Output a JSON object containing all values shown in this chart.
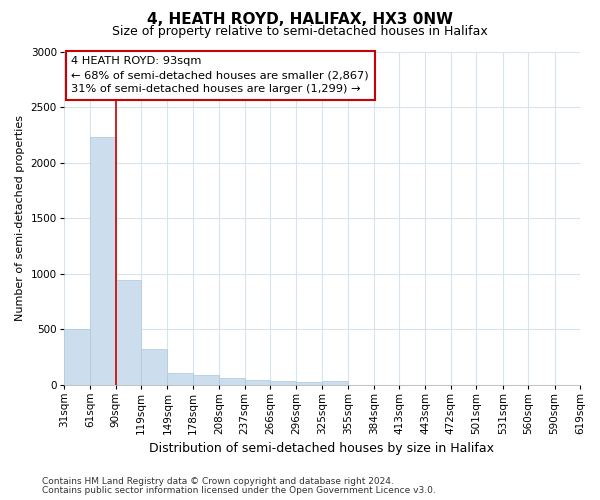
{
  "title": "4, HEATH ROYD, HALIFAX, HX3 0NW",
  "subtitle": "Size of property relative to semi-detached houses in Halifax",
  "xlabel": "Distribution of semi-detached houses by size in Halifax",
  "ylabel": "Number of semi-detached properties",
  "footnote1": "Contains HM Land Registry data © Crown copyright and database right 2024.",
  "footnote2": "Contains public sector information licensed under the Open Government Licence v3.0.",
  "annotation_title": "4 HEATH ROYD: 93sqm",
  "annotation_line1": "← 68% of semi-detached houses are smaller (2,867)",
  "annotation_line2": "31% of semi-detached houses are larger (1,299) →",
  "bar_edges": [
    31,
    61,
    90,
    119,
    149,
    178,
    208,
    237,
    266,
    296,
    325,
    355,
    384,
    413,
    443,
    472,
    501,
    531,
    560,
    590,
    619
  ],
  "bar_heights": [
    500,
    2230,
    940,
    320,
    100,
    85,
    55,
    40,
    30,
    22,
    30,
    0,
    0,
    0,
    0,
    0,
    0,
    0,
    0,
    0
  ],
  "bar_color": "#ccdded",
  "bar_edge_color": "#aac8dc",
  "vline_color": "#cc0000",
  "vline_x": 90,
  "ylim": [
    0,
    3000
  ],
  "xlim": [
    31,
    619
  ],
  "bg_color": "#ffffff",
  "plot_bg_color": "#ffffff",
  "grid_color": "#d8e4ed",
  "annotation_box_color": "#ffffff",
  "annotation_box_edge": "#cc0000",
  "title_fontsize": 11,
  "subtitle_fontsize": 9,
  "ylabel_fontsize": 8,
  "xlabel_fontsize": 9,
  "tick_fontsize": 7.5,
  "footnote_fontsize": 6.5
}
